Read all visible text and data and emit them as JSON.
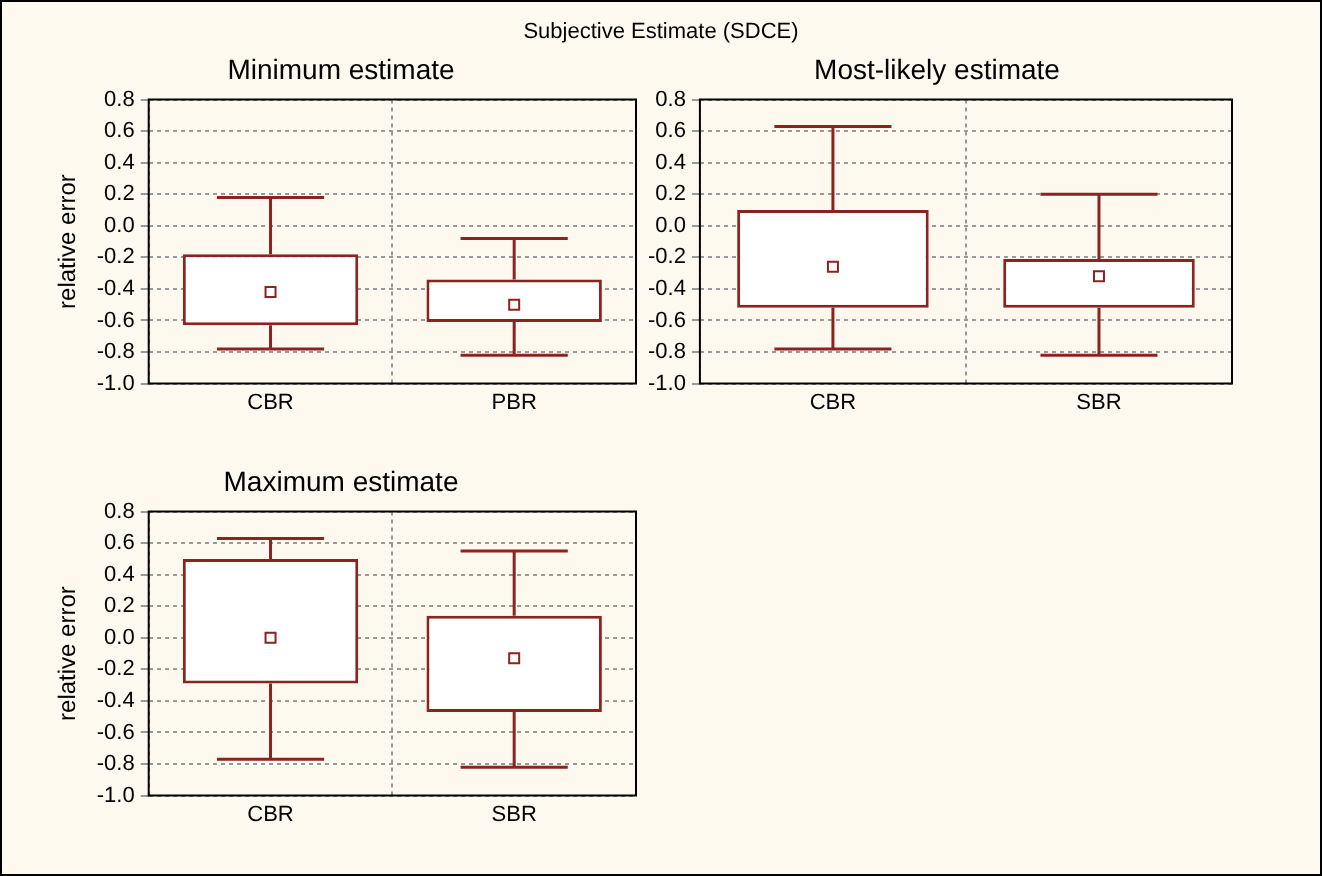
{
  "chart_data": [
    {
      "type": "box",
      "title": "Minimum estimate",
      "ylabel": "relative error",
      "annotations": [
        "Subjective Estimate (SDCE)"
      ],
      "categories": [
        "CBR",
        "PBR"
      ],
      "ylim": [
        -1.0,
        0.8
      ],
      "yticks": [
        {
          "value": -1.0,
          "label": "-1.0"
        },
        {
          "value": -0.8,
          "label": "-0.8"
        },
        {
          "value": -0.6,
          "label": "-0.6"
        },
        {
          "value": -0.4,
          "label": "-0.4"
        },
        {
          "value": -0.2,
          "label": "-0.2"
        },
        {
          "value": 0.0,
          "label": "0.0"
        },
        {
          "value": 0.2,
          "label": "0.2"
        },
        {
          "value": 0.4,
          "label": "0.4"
        },
        {
          "value": 0.6,
          "label": "0.6"
        },
        {
          "value": 0.8,
          "label": "0.8"
        }
      ],
      "grid": true,
      "legend": false,
      "series": [
        {
          "color": "#8b2323",
          "boxes": [
            {
              "low": -0.78,
              "q1": -0.63,
              "median": -0.42,
              "q3": -0.18,
              "high": 0.18
            },
            {
              "low": -0.82,
              "q1": -0.61,
              "median": -0.5,
              "q3": -0.34,
              "high": -0.08
            }
          ]
        }
      ]
    },
    {
      "type": "box",
      "title": "Most-likely estimate",
      "categories": [
        "CBR",
        "SBR"
      ],
      "ylim": [
        -1.0,
        0.8
      ],
      "yticks": [
        {
          "value": -1.0,
          "label": "-1.0"
        },
        {
          "value": -0.8,
          "label": "-0.8"
        },
        {
          "value": -0.6,
          "label": "-0.6"
        },
        {
          "value": -0.4,
          "label": "-0.4"
        },
        {
          "value": -0.2,
          "label": "-0.2"
        },
        {
          "value": 0.0,
          "label": "0.0"
        },
        {
          "value": 0.2,
          "label": "0.2"
        },
        {
          "value": 0.4,
          "label": "0.4"
        },
        {
          "value": 0.6,
          "label": "0.6"
        },
        {
          "value": 0.8,
          "label": "0.8"
        }
      ],
      "grid": true,
      "legend": false,
      "series": [
        {
          "color": "#8b2323",
          "boxes": [
            {
              "low": -0.78,
              "q1": -0.52,
              "median": -0.26,
              "q3": 0.1,
              "high": 0.63
            },
            {
              "low": -0.82,
              "q1": -0.52,
              "median": -0.32,
              "q3": -0.21,
              "high": 0.2
            }
          ]
        }
      ]
    },
    {
      "type": "box",
      "title": "Maximum estimate",
      "ylabel": "relative error",
      "categories": [
        "CBR",
        "SBR"
      ],
      "ylim": [
        -1.0,
        0.8
      ],
      "yticks": [
        {
          "value": -1.0,
          "label": "-1.0"
        },
        {
          "value": -0.8,
          "label": "-0.8"
        },
        {
          "value": -0.6,
          "label": "-0.6"
        },
        {
          "value": -0.4,
          "label": "-0.4"
        },
        {
          "value": -0.2,
          "label": "-0.2"
        },
        {
          "value": 0.0,
          "label": "0.0"
        },
        {
          "value": 0.2,
          "label": "0.2"
        },
        {
          "value": 0.4,
          "label": "0.4"
        },
        {
          "value": 0.6,
          "label": "0.6"
        },
        {
          "value": 0.8,
          "label": "0.8"
        }
      ],
      "grid": true,
      "legend": false,
      "series": [
        {
          "color": "#8b2323",
          "boxes": [
            {
              "low": -0.77,
              "q1": -0.29,
              "median": 0.0,
              "q3": 0.5,
              "high": 0.63
            },
            {
              "low": -0.82,
              "q1": -0.47,
              "median": -0.13,
              "q3": 0.14,
              "high": 0.55
            }
          ]
        }
      ]
    }
  ]
}
